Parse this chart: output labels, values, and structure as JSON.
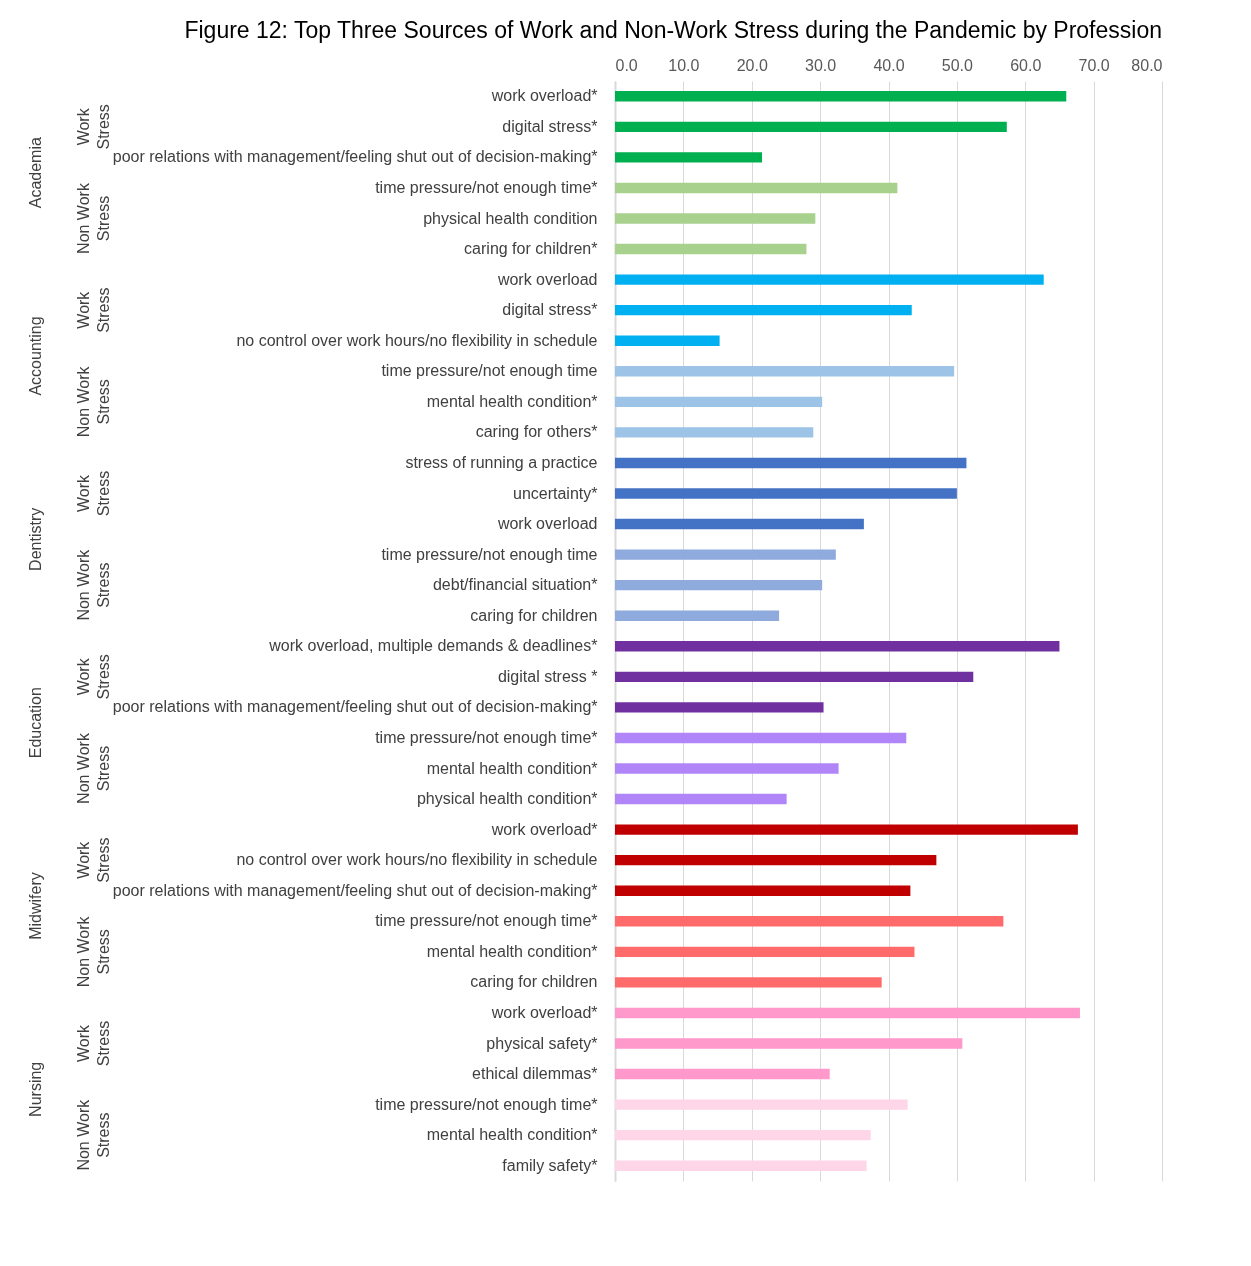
{
  "chart_data": {
    "type": "bar",
    "orientation": "horizontal",
    "title": "Figure 12: Top Three Sources of Work and Non-Work Stress during the Pandemic by Profession",
    "categories": [
      "work overload*",
      "digital stress*",
      "poor relations with management/feeling shut out of decision-making*",
      "time pressure/not enough time*",
      "physical health condition",
      "caring for children*",
      "work overload",
      "digital stress*",
      "no control over work hours/no flexibility in schedule",
      "time pressure/not enough time",
      "mental health condition*",
      "caring for others*",
      "stress of running a practice",
      "uncertainty*",
      "work overload",
      "time pressure/not enough time",
      "debt/financial situation*",
      "caring for children",
      "work overload, multiple demands & deadlines*",
      "digital stress *",
      "poor relations with management/feeling shut out of decision-making*",
      "time pressure/not enough time*",
      "mental health condition*",
      "physical health condition*",
      "work overload*",
      "no control over work hours/no flexibility in schedule",
      "poor relations with management/feeling shut out of decision-making*",
      "time pressure/not enough time*",
      "mental health condition*",
      "caring for children",
      "work overload*",
      "physical safety*",
      "ethical dilemmas*",
      "time pressure/not enough time*",
      "mental health condition*",
      "family safety*"
    ],
    "values": [
      66.0,
      57.3,
      21.5,
      41.3,
      29.3,
      28.0,
      62.7,
      43.4,
      15.3,
      49.6,
      30.3,
      29.0,
      51.4,
      50.0,
      36.4,
      32.3,
      30.3,
      24.0,
      65.0,
      52.4,
      30.5,
      42.6,
      32.7,
      25.1,
      67.7,
      47.0,
      43.2,
      56.8,
      43.8,
      39.0,
      68.0,
      50.8,
      31.4,
      42.8,
      37.4,
      36.8
    ],
    "colors": [
      "#00b050",
      "#00b050",
      "#00b050",
      "#a9d18e",
      "#a9d18e",
      "#a9d18e",
      "#00b0f0",
      "#00b0f0",
      "#00b0f0",
      "#9dc3e6",
      "#9dc3e6",
      "#9dc3e6",
      "#4472c4",
      "#4472c4",
      "#4472c4",
      "#8faadc",
      "#8faadc",
      "#8faadc",
      "#7030a0",
      "#7030a0",
      "#7030a0",
      "#b085f8",
      "#b085f8",
      "#b085f8",
      "#c00000",
      "#c00000",
      "#c00000",
      "#ff6b6b",
      "#ff6b6b",
      "#ff6b6b",
      "#ff99cc",
      "#ff99cc",
      "#ff99cc",
      "#ffd5e8",
      "#ffd5e8",
      "#ffd5e8"
    ],
    "xlim": [
      0,
      80
    ],
    "xticks": [
      {
        "value": 0,
        "label": "0.0"
      },
      {
        "value": 10,
        "label": "10.0"
      },
      {
        "value": 20,
        "label": "20.0"
      },
      {
        "value": 30,
        "label": "30.0"
      },
      {
        "value": 40,
        "label": "40.0"
      },
      {
        "value": 50,
        "label": "50.0"
      },
      {
        "value": 60,
        "label": "60.0"
      },
      {
        "value": 70,
        "label": "70.0"
      },
      {
        "value": 80,
        "label": "80.0"
      }
    ],
    "grid": "x",
    "annotations": [
      "Academia",
      "Work Stress",
      "Non Work Stress",
      "Accounting",
      "Work Stress",
      "Non Work Stress",
      "Dentistry",
      "Work Stress",
      "Non Work Stress",
      "Education",
      "Work Stress",
      "Non Work Stress",
      "Midwifery",
      "Work Stress",
      "Non Work Stress",
      "Nursing",
      "Work Stress",
      "Non Work Stress"
    ]
  }
}
